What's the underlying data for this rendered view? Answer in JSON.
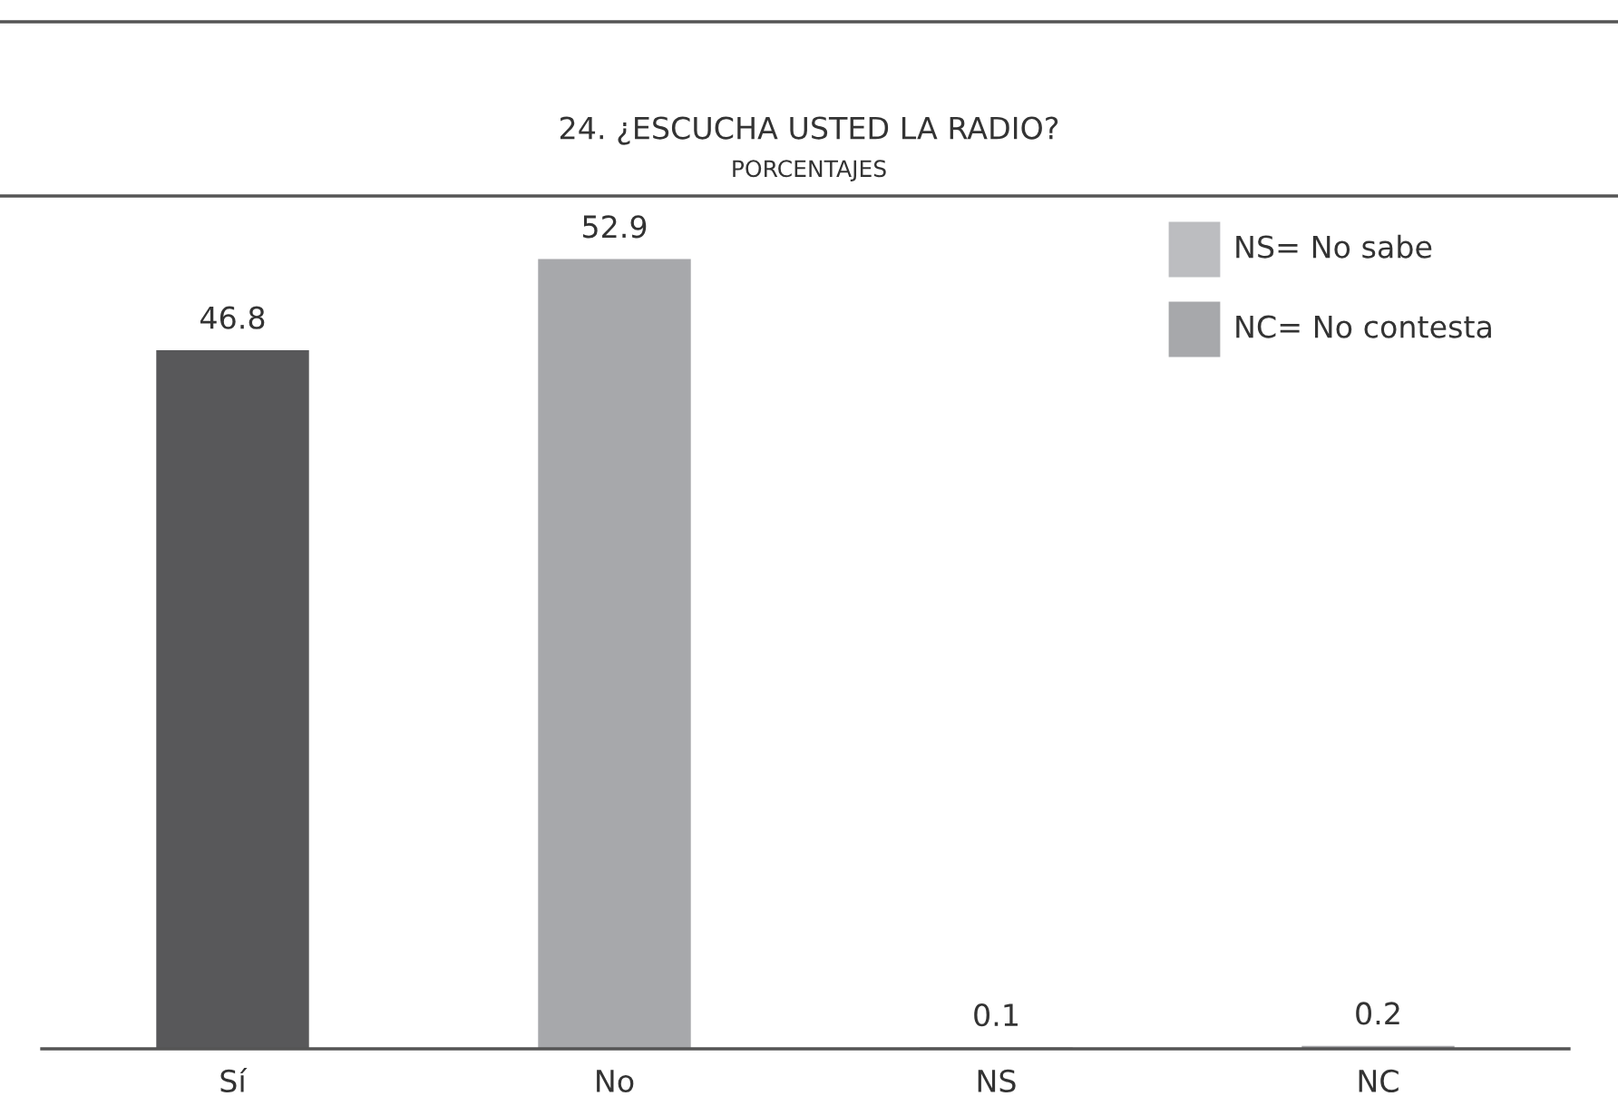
{
  "chart_data": {
    "type": "bar",
    "title": "24. ¿ESCUCHA USTED LA RADIO?",
    "subtitle": "PORCENTAJES",
    "categories": [
      "Sí",
      "No",
      "NS",
      "NC"
    ],
    "values": [
      46.8,
      52.9,
      0.1,
      0.2
    ],
    "colors": [
      "#58585a",
      "#a7a8ab",
      "#bcbdc0",
      "#a7a8ab"
    ],
    "data_labels": true,
    "grid": false,
    "annotations": [
      "NS= No sabe",
      "NC= No contesta"
    ]
  }
}
